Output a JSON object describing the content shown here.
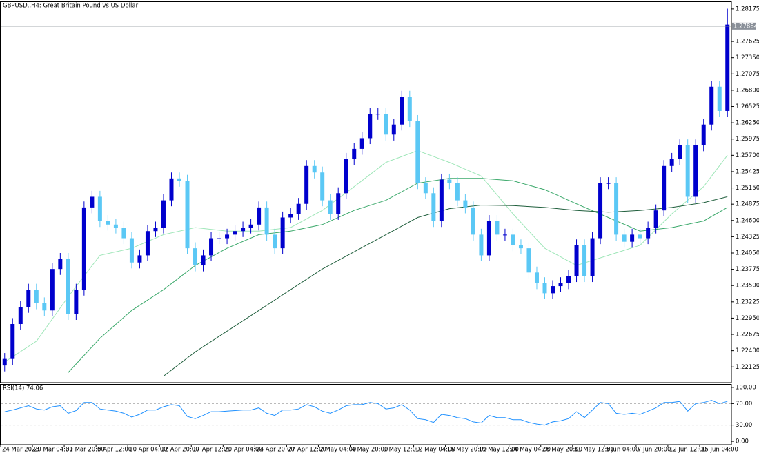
{
  "chart_data": [
    {
      "type": "candlestick",
      "title": "GBPUSD.,H4:  Great Britain Pound vs US Dollar",
      "categories": [
        "24 Mar 2023",
        null,
        null,
        null,
        "29 Mar 04:00",
        null,
        null,
        null,
        "31 Mar 20:00",
        null,
        null,
        null,
        "5 Apr 12:00",
        null,
        null,
        null,
        "10 Apr 04:00",
        null,
        null,
        null,
        "12 Apr 20:00",
        null,
        null,
        null,
        "17 Apr 12:00",
        null,
        null,
        null,
        "20 Apr 04:00",
        null,
        null,
        null,
        "24 Apr 20:00",
        null,
        null,
        null,
        "27 Apr 12:00",
        null,
        null,
        null,
        "2 May 04:00",
        null,
        null,
        null,
        "4 May 20:00",
        null,
        null,
        null,
        "9 May 12:00",
        null,
        null,
        null,
        "12 May 04:00",
        null,
        null,
        null,
        "16 May 20:00",
        null,
        null,
        null,
        "19 May 12:00",
        null,
        null,
        null,
        "24 May 04:00",
        null,
        null,
        null,
        "26 May 20:00",
        null,
        null,
        null,
        "31 May 12:00",
        null,
        null,
        null,
        "5 Jun 04:00",
        null,
        null,
        null,
        "7 Jun 20:00",
        null,
        null,
        null,
        "12 Jun 12:00",
        null,
        null,
        null,
        "15 Jun 04:00",
        null,
        null,
        null
      ],
      "open": [
        1.2215,
        1.2226,
        1.2285,
        1.2314,
        1.2343,
        1.232,
        1.2308,
        1.2378,
        1.2395,
        1.2302,
        1.2343,
        1.2482,
        1.25,
        1.2459,
        1.2453,
        1.2448,
        1.243,
        1.2389,
        1.2401,
        1.2442,
        1.2448,
        1.2494,
        1.2531,
        1.2527,
        1.2413,
        1.2384,
        1.2401,
        1.243,
        1.243,
        1.2436,
        1.2442,
        1.2448,
        1.2453,
        1.2482,
        1.2436,
        1.2413,
        1.2465,
        1.2471,
        1.2488,
        1.2552,
        1.2541,
        1.2494,
        1.2471,
        1.2506,
        1.2564,
        1.2581,
        1.2599,
        1.264,
        1.264,
        1.2605,
        1.2622,
        1.2669,
        1.2628,
        1.2523,
        1.2506,
        1.2459,
        1.2529,
        1.2523,
        1.2494,
        1.2482,
        1.2436,
        1.2401,
        1.2459,
        1.2436,
        1.2436,
        1.2418,
        1.2413,
        1.2372,
        1.2354,
        1.2337,
        1.2349,
        1.2354,
        1.2366,
        1.2418,
        1.2366,
        1.243,
        1.2523,
        1.2523,
        1.2436,
        1.2424,
        1.2436,
        1.243,
        1.2448,
        1.2477,
        1.2552,
        1.2564,
        1.2587,
        1.25,
        1.2587,
        1.2622,
        1.2686,
        1.2645
      ],
      "high": [
        1.2236,
        1.2295,
        1.2324,
        1.2353,
        1.2353,
        1.233,
        1.2388,
        1.2405,
        1.2405,
        1.2353,
        1.2492,
        1.251,
        1.251,
        1.2469,
        1.2463,
        1.2458,
        1.244,
        1.2411,
        1.2452,
        1.2458,
        1.2504,
        1.2541,
        1.2541,
        1.2537,
        1.2423,
        1.2411,
        1.244,
        1.244,
        1.2446,
        1.2452,
        1.2458,
        1.2463,
        1.2492,
        1.2492,
        1.2446,
        1.2475,
        1.2481,
        1.2498,
        1.2562,
        1.2562,
        1.2551,
        1.2504,
        1.2516,
        1.2574,
        1.2591,
        1.2609,
        1.265,
        1.265,
        1.265,
        1.2632,
        1.2679,
        1.2679,
        1.2638,
        1.2533,
        1.2516,
        1.2539,
        1.2539,
        1.2533,
        1.2504,
        1.2492,
        1.2446,
        1.2469,
        1.2469,
        1.2446,
        1.2446,
        1.2428,
        1.2423,
        1.2382,
        1.2364,
        1.2359,
        1.2364,
        1.2376,
        1.2428,
        1.2428,
        1.244,
        1.2533,
        1.2533,
        1.2533,
        1.2446,
        1.2446,
        1.2446,
        1.2458,
        1.2487,
        1.2562,
        1.2574,
        1.2597,
        1.2597,
        1.2597,
        1.2632,
        1.2696,
        1.2696,
        1.2818
      ],
      "low": [
        1.2205,
        1.2216,
        1.2275,
        1.2304,
        1.231,
        1.2298,
        1.2298,
        1.2368,
        1.2292,
        1.2292,
        1.2333,
        1.2472,
        1.2449,
        1.2443,
        1.2438,
        1.242,
        1.2379,
        1.2379,
        1.2391,
        1.2432,
        1.2438,
        1.2484,
        1.2517,
        1.2403,
        1.2374,
        1.2374,
        1.2391,
        1.242,
        1.242,
        1.2426,
        1.2432,
        1.2438,
        1.2443,
        1.2426,
        1.2403,
        1.2403,
        1.2455,
        1.2461,
        1.2478,
        1.2531,
        1.2484,
        1.2461,
        1.2461,
        1.2496,
        1.2554,
        1.2571,
        1.2589,
        1.263,
        1.2595,
        1.2595,
        1.2612,
        1.2618,
        1.2513,
        1.2496,
        1.2449,
        1.2449,
        1.2513,
        1.2484,
        1.2472,
        1.2426,
        1.2391,
        1.2391,
        1.2426,
        1.2426,
        1.2408,
        1.2403,
        1.2362,
        1.2344,
        1.2327,
        1.2327,
        1.2339,
        1.2344,
        1.2356,
        1.2356,
        1.2356,
        1.242,
        1.2513,
        1.2426,
        1.2414,
        1.2414,
        1.242,
        1.242,
        1.2438,
        1.2467,
        1.2542,
        1.2554,
        1.249,
        1.249,
        1.2577,
        1.2612,
        1.2635,
        1.2635
      ],
      "close": [
        1.2226,
        1.2285,
        1.2314,
        1.2343,
        1.232,
        1.2308,
        1.2378,
        1.2395,
        1.2302,
        1.2343,
        1.2482,
        1.25,
        1.2459,
        1.2453,
        1.2448,
        1.243,
        1.2389,
        1.2401,
        1.2442,
        1.2448,
        1.2494,
        1.2531,
        1.2527,
        1.2413,
        1.2384,
        1.2401,
        1.243,
        1.243,
        1.2436,
        1.2442,
        1.2448,
        1.2453,
        1.2482,
        1.2436,
        1.2413,
        1.2465,
        1.2471,
        1.2488,
        1.2552,
        1.2541,
        1.2494,
        1.2471,
        1.2506,
        1.2564,
        1.2581,
        1.2599,
        1.264,
        1.264,
        1.2605,
        1.2622,
        1.2669,
        1.2628,
        1.2523,
        1.2506,
        1.2459,
        1.2529,
        1.2523,
        1.2494,
        1.2482,
        1.2436,
        1.2401,
        1.2459,
        1.2436,
        1.2436,
        1.2418,
        1.2413,
        1.2372,
        1.2354,
        1.2337,
        1.2349,
        1.2354,
        1.2366,
        1.2418,
        1.2366,
        1.243,
        1.2523,
        1.2523,
        1.2436,
        1.2424,
        1.2436,
        1.243,
        1.2448,
        1.2477,
        1.2552,
        1.2564,
        1.2587,
        1.25,
        1.2587,
        1.2622,
        1.2686,
        1.2645,
        1.2791
      ],
      "up_color": "#0000cd",
      "down_color": "#5bc8f5",
      "series": [
        {
          "color": "#9ee6b8",
          "x": [
            0,
            4,
            8,
            12,
            16,
            20,
            24,
            28,
            32,
            36,
            40,
            44,
            48,
            52,
            56,
            60,
            64,
            68,
            72,
            76,
            80,
            84,
            88,
            91
          ],
          "values": [
            1.2221,
            1.2256,
            1.2331,
            1.2401,
            1.2413,
            1.2436,
            1.2448,
            1.2442,
            1.2442,
            1.2448,
            1.2477,
            1.2517,
            1.2558,
            1.2578,
            1.2558,
            1.2535,
            1.2471,
            1.2413,
            1.2384,
            1.2401,
            1.2418,
            1.2471,
            1.2517,
            1.257
          ]
        },
        {
          "color": "#3aa86a",
          "x": [
            0,
            4,
            8,
            12,
            16,
            20,
            24,
            28,
            32,
            36,
            40,
            44,
            48,
            52,
            56,
            60,
            64,
            68,
            72,
            76,
            80,
            84,
            88,
            91
          ],
          "values": [
            null,
            null,
            1.2203,
            1.2261,
            1.2308,
            1.2343,
            1.2384,
            1.2413,
            1.2436,
            1.2442,
            1.2453,
            1.2477,
            1.2494,
            1.2523,
            1.2531,
            1.2531,
            1.2527,
            1.2512,
            1.2488,
            1.2465,
            1.2442,
            1.2448,
            1.2459,
            1.2482
          ]
        },
        {
          "color": "#1f5e3c",
          "x": [
            0,
            4,
            8,
            12,
            16,
            20,
            24,
            28,
            32,
            36,
            40,
            44,
            48,
            52,
            56,
            60,
            64,
            68,
            72,
            76,
            80,
            84,
            88,
            91
          ],
          "values": [
            null,
            null,
            null,
            null,
            null,
            1.2197,
            1.2238,
            1.2273,
            1.2308,
            1.2343,
            1.2378,
            1.2407,
            1.2436,
            1.2465,
            1.248,
            1.2486,
            1.2485,
            1.2482,
            1.2477,
            1.2474,
            1.2477,
            1.2482,
            1.249,
            1.25
          ]
        }
      ],
      "current_price": {
        "value": 1.27884,
        "label": "1.27884"
      },
      "ylim": [
        1.2186,
        1.2829
      ],
      "yticks": [
        1.28175,
        1.27625,
        {
          "value": 1.2735,
          "label": "1.27350"
        },
        1.27075,
        {
          "value": 1.268,
          "label": "1.26800"
        },
        1.26525,
        {
          "value": 1.2625,
          "label": "1.26250"
        },
        1.25975,
        {
          "value": 1.257,
          "label": "1.25700"
        },
        1.25425,
        {
          "value": 1.2515,
          "label": "1.25150"
        },
        1.24875,
        {
          "value": 1.246,
          "label": "1.24600"
        },
        1.24325,
        {
          "value": 1.2405,
          "label": "1.24050"
        },
        1.23775,
        {
          "value": 1.235,
          "label": "1.23500"
        },
        1.23225,
        {
          "value": 1.2295,
          "label": "1.22950"
        },
        1.22675,
        {
          "value": 1.224,
          "label": "1.22400"
        },
        1.22125
      ]
    },
    {
      "type": "line",
      "title": "RSI(14) 74.06",
      "color": "#1e90ff",
      "values": [
        55,
        58,
        62,
        66,
        60,
        58,
        64,
        66,
        52,
        57,
        72,
        72,
        60,
        58,
        56,
        52,
        45,
        50,
        58,
        58,
        64,
        68,
        66,
        46,
        42,
        48,
        55,
        55,
        56,
        57,
        58,
        58,
        62,
        52,
        48,
        58,
        58,
        60,
        68,
        64,
        56,
        52,
        58,
        66,
        68,
        68,
        72,
        70,
        60,
        62,
        68,
        58,
        42,
        40,
        35,
        50,
        48,
        44,
        42,
        36,
        34,
        48,
        44,
        44,
        40,
        40,
        35,
        32,
        30,
        36,
        38,
        42,
        55,
        44,
        58,
        72,
        70,
        52,
        50,
        52,
        50,
        56,
        62,
        72,
        72,
        74,
        56,
        70,
        72,
        76,
        70,
        74.06
      ],
      "levels": [
        70,
        30
      ],
      "ylim": [
        -6.3,
        105
      ],
      "yticks": [
        {
          "value": 100,
          "label": "100.00"
        },
        {
          "value": 70,
          "label": "70.00"
        },
        {
          "value": 30,
          "label": "30.00"
        },
        {
          "value": 0,
          "label": "0.00"
        }
      ]
    }
  ]
}
